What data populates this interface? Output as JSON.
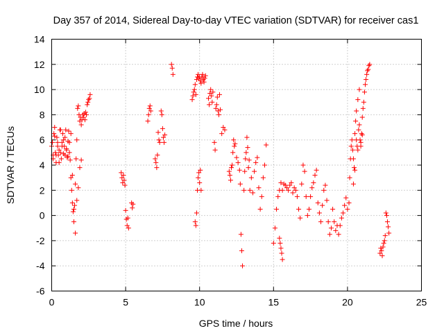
{
  "chart_data": {
    "type": "scatter",
    "title": "Day 357 of 2014, Sidereal Day-to-day VTEC variation (SDTVAR) for receiver cas1",
    "xlabel": "GPS time / hours",
    "ylabel": "SDTVAR / TECUs",
    "xlim": [
      0,
      25
    ],
    "ylim": [
      -6,
      14
    ],
    "xticks": [
      0,
      5,
      10,
      15,
      20,
      25
    ],
    "yticks": [
      -6,
      -4,
      -2,
      0,
      2,
      4,
      6,
      8,
      10,
      12,
      14
    ],
    "xtick_labels": [
      "0",
      "5",
      "10",
      "15",
      "20",
      "25"
    ],
    "ytick_labels": [
      "-6",
      "-4",
      "-2",
      "0",
      "2",
      "4",
      "6",
      "8",
      "10",
      "12",
      "14"
    ],
    "grid": true,
    "marker": "+",
    "color": "#ff0000",
    "series": [
      {
        "name": "cas1",
        "x": [
          0.0,
          0.05,
          0.1,
          0.15,
          0.2,
          0.25,
          0.3,
          0.35,
          0.4,
          0.45,
          0.5,
          0.55,
          0.6,
          0.65,
          0.7,
          0.75,
          0.8,
          0.85,
          0.9,
          0.95,
          1.0,
          1.05,
          1.1,
          1.15,
          1.2,
          1.25,
          1.3,
          1.35,
          1.4,
          1.45,
          1.5,
          1.55,
          1.6,
          1.65,
          1.7,
          1.75,
          1.8,
          1.85,
          1.9,
          1.95,
          2.0,
          2.05,
          2.1,
          2.15,
          2.2,
          2.25,
          2.3,
          2.35,
          2.4,
          2.45,
          2.5,
          2.55,
          2.6,
          0.1,
          0.2,
          0.3,
          0.4,
          0.5,
          0.6,
          0.7,
          0.8,
          0.9,
          1.0,
          1.1,
          1.2,
          1.3,
          1.4,
          1.5,
          1.6,
          1.7,
          1.8,
          1.9,
          2.0,
          4.7,
          4.75,
          4.8,
          4.85,
          4.9,
          4.95,
          5.0,
          5.05,
          5.1,
          5.15,
          5.2,
          5.4,
          5.45,
          5.5,
          6.5,
          6.55,
          6.6,
          6.65,
          6.7,
          7.0,
          7.05,
          7.1,
          7.15,
          7.2,
          7.25,
          7.3,
          7.4,
          7.45,
          7.5,
          7.55,
          7.6,
          7.65,
          8.1,
          8.15,
          8.2,
          9.5,
          9.55,
          9.6,
          9.65,
          9.7,
          9.75,
          9.8,
          9.85,
          9.9,
          9.95,
          10.0,
          10.05,
          10.1,
          10.15,
          10.2,
          10.25,
          10.3,
          10.35,
          10.4,
          9.7,
          9.75,
          9.8,
          9.85,
          9.9,
          9.95,
          10.0,
          10.05,
          10.1,
          10.6,
          10.65,
          10.7,
          10.75,
          10.8,
          10.85,
          10.9,
          11.0,
          11.05,
          11.1,
          11.15,
          11.2,
          11.25,
          11.3,
          11.35,
          11.4,
          11.5,
          11.6,
          11.7,
          12.0,
          12.05,
          12.1,
          12.15,
          12.2,
          12.25,
          12.3,
          12.35,
          12.4,
          12.5,
          12.6,
          12.7,
          12.75,
          12.8,
          12.85,
          12.9,
          13.0,
          13.05,
          13.1,
          13.15,
          13.2,
          13.25,
          13.3,
          13.35,
          13.4,
          13.5,
          13.6,
          13.7,
          13.8,
          13.9,
          14.0,
          14.1,
          14.2,
          14.3,
          14.4,
          14.5,
          15.0,
          15.1,
          15.2,
          15.3,
          15.4,
          15.5,
          15.6,
          15.7,
          15.8,
          15.9,
          16.0,
          16.1,
          16.2,
          16.3,
          16.4,
          16.5,
          16.6,
          16.7,
          16.8,
          16.9,
          17.0,
          17.1,
          17.2,
          17.3,
          17.4,
          17.5,
          17.6,
          17.7,
          17.8,
          17.9,
          18.0,
          18.1,
          18.2,
          18.3,
          18.4,
          18.5,
          18.6,
          18.7,
          18.8,
          18.9,
          19.0,
          19.1,
          19.2,
          19.3,
          19.4,
          19.5,
          19.6,
          19.7,
          19.8,
          19.9,
          20.0,
          15.4,
          15.45,
          15.5,
          15.55,
          15.6,
          20.1,
          20.15,
          20.2,
          20.25,
          20.3,
          20.35,
          20.4,
          20.45,
          20.5,
          20.55,
          20.6,
          20.65,
          20.7,
          20.75,
          20.8,
          20.85,
          20.9,
          20.95,
          21.0,
          21.05,
          21.1,
          21.15,
          21.2,
          21.25,
          21.3,
          21.35,
          21.4,
          21.45,
          21.5,
          20.4,
          20.5,
          20.6,
          20.7,
          20.8,
          20.9,
          21.0,
          22.2,
          22.25,
          22.3,
          22.35,
          22.4,
          22.45,
          22.5,
          22.55,
          22.6,
          22.65,
          22.7,
          22.75,
          22.8
        ],
        "y": [
          5.5,
          5.8,
          4.8,
          6.5,
          7.0,
          5.0,
          4.2,
          6.2,
          5.5,
          4.8,
          5.2,
          6.8,
          5.0,
          4.5,
          5.8,
          6.5,
          6.0,
          5.5,
          4.8,
          6.8,
          5.2,
          4.6,
          5.9,
          6.7,
          5.0,
          4.4,
          3.0,
          2.0,
          1.0,
          0.3,
          -0.5,
          0.8,
          2.5,
          4.5,
          6.0,
          8.5,
          8.7,
          8.0,
          7.5,
          7.8,
          7.2,
          7.6,
          8.0,
          7.8,
          8.1,
          7.6,
          8.2,
          8.0,
          8.8,
          9.0,
          9.2,
          9.3,
          9.6,
          4.5,
          6.3,
          4.8,
          5.8,
          4.2,
          6.8,
          5.5,
          4.9,
          6.2,
          5.3,
          4.7,
          5.8,
          6.5,
          3.2,
          0.5,
          -1.4,
          1.2,
          2.2,
          3.8,
          4.4,
          3.4,
          3.0,
          2.6,
          3.2,
          2.8,
          2.4,
          0.4,
          -0.3,
          -0.8,
          -0.2,
          -1.0,
          1.0,
          0.6,
          0.9,
          7.5,
          8.0,
          8.5,
          8.7,
          8.3,
          4.5,
          4.2,
          3.8,
          4.8,
          6.6,
          6.0,
          5.8,
          8.3,
          8.0,
          6.9,
          6.2,
          5.8,
          6.4,
          12.0,
          11.7,
          11.2,
          9.2,
          9.5,
          9.8,
          10.0,
          10.4,
          9.6,
          10.8,
          11.0,
          11.2,
          10.9,
          11.0,
          10.7,
          10.5,
          11.0,
          11.2,
          10.8,
          10.6,
          10.9,
          11.1,
          -0.5,
          -0.8,
          0.2,
          2.0,
          3.0,
          3.4,
          2.6,
          3.6,
          2.0,
          9.3,
          8.8,
          9.7,
          10.0,
          9.5,
          9.0,
          9.8,
          5.8,
          5.2,
          8.5,
          8.8,
          9.4,
          8.3,
          8.0,
          9.6,
          8.4,
          6.5,
          7.0,
          6.8,
          3.5,
          3.2,
          2.8,
          3.8,
          4.0,
          5.0,
          6.0,
          5.5,
          5.7,
          4.6,
          4.2,
          3.6,
          2.5,
          -1.5,
          -2.8,
          -4.0,
          2.0,
          3.5,
          4.5,
          5.0,
          6.2,
          5.4,
          3.8,
          4.4,
          2.0,
          3.0,
          1.8,
          3.5,
          4.2,
          4.6,
          2.2,
          0.5,
          1.5,
          3.0,
          4.0,
          5.6,
          -2.2,
          -1.0,
          0.5,
          1.5,
          2.0,
          2.6,
          2.0,
          2.5,
          2.4,
          2.2,
          2.0,
          2.4,
          2.6,
          1.8,
          2.2,
          2.0,
          1.5,
          0.5,
          -0.2,
          2.5,
          4.0,
          3.5,
          1.5,
          0.0,
          0.5,
          1.5,
          2.2,
          2.6,
          3.2,
          3.6,
          1.0,
          0.2,
          -0.5,
          0.8,
          2.0,
          2.4,
          1.2,
          -0.5,
          -1.5,
          -1.0,
          0.5,
          -0.5,
          -1.2,
          -0.8,
          -1.5,
          -0.8,
          -0.2,
          0.2,
          0.8,
          1.4,
          0.5,
          -1.8,
          -2.2,
          -2.6,
          -3.0,
          -3.5,
          1.0,
          3.0,
          4.5,
          5.5,
          6.0,
          5.2,
          4.5,
          3.8,
          6.5,
          7.5,
          6.0,
          5.5,
          5.2,
          6.8,
          7.2,
          6.0,
          5.5,
          6.5,
          7.8,
          8.5,
          9.0,
          9.8,
          10.4,
          10.8,
          11.2,
          11.5,
          11.6,
          11.9,
          12.0,
          2.5,
          3.6,
          8.3,
          9.2,
          10.0,
          5.8,
          6.4,
          -3.0,
          -2.6,
          -2.8,
          -3.2,
          -2.5,
          -2.2,
          -2.0,
          -1.6,
          0.2,
          0.0,
          -0.5,
          -0.9,
          -1.4
        ]
      }
    ]
  }
}
